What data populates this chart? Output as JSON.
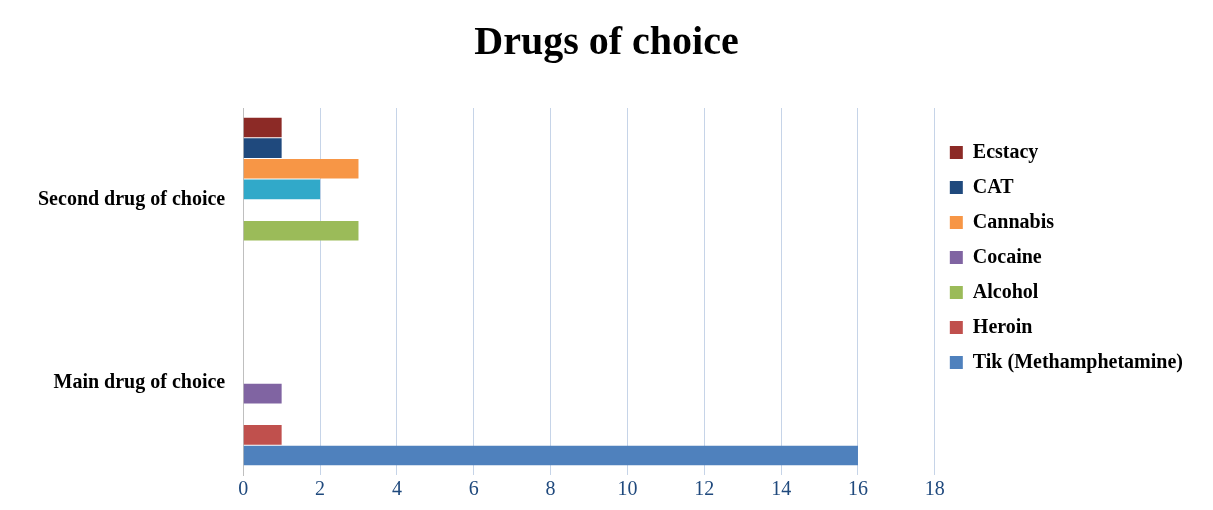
{
  "chart_data": {
    "type": "bar",
    "orientation": "horizontal",
    "title": "Drugs of choice",
    "categories": [
      "Second drug of choice",
      "Main drug of choice"
    ],
    "series": [
      {
        "name": "Ecstacy",
        "color": "#8c2a26",
        "values": [
          1,
          null
        ]
      },
      {
        "name": "CAT",
        "color": "#1f497d",
        "values": [
          1,
          null
        ]
      },
      {
        "name": "Cannabis",
        "color": "#f79646",
        "values": [
          3,
          null
        ]
      },
      {
        "color": "#31a9c9",
        "values": [
          2,
          null
        ]
      },
      {
        "name": "Cocaine",
        "color": "#8064a2",
        "values": [
          null,
          1
        ]
      },
      {
        "name": "Alcohol",
        "color": "#9bbb59",
        "values": [
          3,
          null
        ]
      },
      {
        "name": "Heroin",
        "color": "#c0504d",
        "values": [
          null,
          1
        ]
      },
      {
        "name": "Tik (Methamphetamine)",
        "color": "#4f81bd",
        "values": [
          null,
          16
        ]
      }
    ],
    "xlim": [
      0,
      18
    ],
    "xticks": [
      0,
      2,
      4,
      6,
      8,
      10,
      12,
      14,
      16,
      18
    ],
    "grid": "x",
    "legend": "right"
  }
}
